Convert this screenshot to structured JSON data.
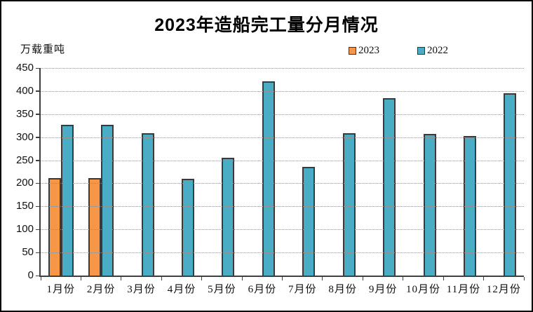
{
  "title": "2023年造船完工量分月情况",
  "y_unit_label": "万载重吨",
  "legend": [
    {
      "label": "2023",
      "color": "#F79646"
    },
    {
      "label": "2022",
      "color": "#4BACC6"
    }
  ],
  "colors": {
    "background": "#ffffff",
    "frame_border": "#000000",
    "axis": "#404040",
    "gridline": "#909090",
    "bar_border": "#3a3a3a",
    "series_2023": "#F79646",
    "series_2022": "#4BACC6",
    "text": "#111111"
  },
  "chart_data": {
    "type": "bar",
    "title": "2023年造船完工量分月情况",
    "ylabel": "万载重吨",
    "xlabel": "",
    "categories": [
      "1月份",
      "2月份",
      "3月份",
      "4月份",
      "5月份",
      "6月份",
      "7月份",
      "8月份",
      "9月份",
      "10月份",
      "11月份",
      "12月份"
    ],
    "series": [
      {
        "name": "2023",
        "color": "#F79646",
        "values": [
          211,
          211,
          null,
          null,
          null,
          null,
          null,
          null,
          null,
          null,
          null,
          null
        ]
      },
      {
        "name": "2022",
        "color": "#4BACC6",
        "values": [
          327,
          327,
          308,
          210,
          256,
          421,
          235,
          309,
          385,
          307,
          303,
          396
        ]
      }
    ],
    "ylim": [
      0,
      450
    ],
    "ytick_interval": 50,
    "grid": true,
    "gridline_style": "dotted",
    "legend_position": "top-right"
  }
}
